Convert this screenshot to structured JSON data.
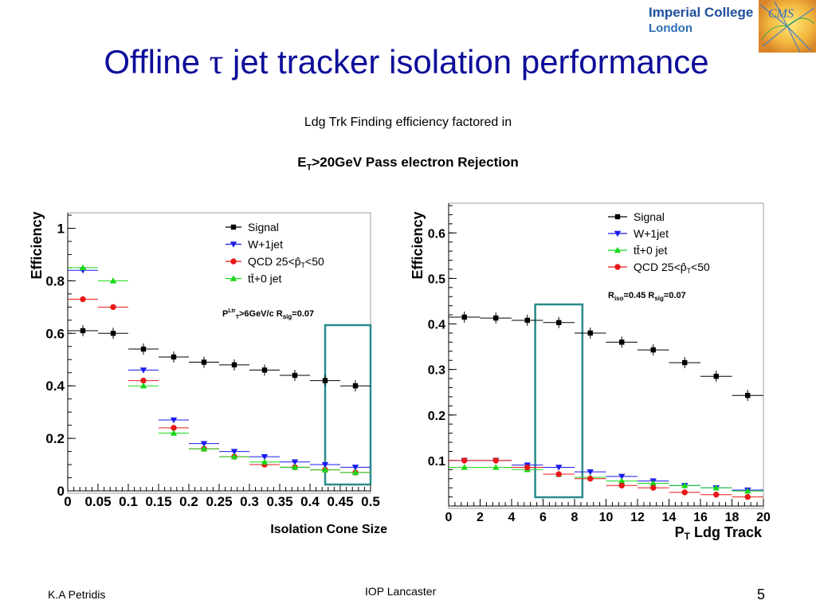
{
  "slide": {
    "title_pre": "Offline ",
    "title_tau": "τ",
    "title_post": " jet tracker isolation performance",
    "subtitle_line1": "Ldg Trk Finding efficiency factored in",
    "subtitle_line2_main": "E",
    "subtitle_line2_sub": "T",
    "subtitle_line2_rest": ">20GeV Pass electron Rejection"
  },
  "logo": {
    "line1": "Imperial College",
    "line2": "London",
    "cms_text": "CMS"
  },
  "footer": {
    "left": "K.A Petridis",
    "center": "IOP Lancaster",
    "page": "5"
  },
  "colors": {
    "title": "#0d0d9a",
    "signal": "#000000",
    "wjet": "#1a1aee",
    "qcd": "#e81818",
    "ttbar": "#18d818",
    "highlight": "#2a8a8a"
  },
  "chart_data": [
    {
      "type": "scatter",
      "ylabel": "Efficiency",
      "xlabel": "Isolation Cone Size",
      "xlim": [
        0,
        0.5
      ],
      "ylim": [
        0,
        1.05
      ],
      "x_ticks": [
        "0",
        "0.05",
        "0.1",
        "0.15",
        "0.2",
        "0.25",
        "0.3",
        "0.35",
        "0.4",
        "0.45",
        "0.5"
      ],
      "y_ticks": [
        "0",
        "0.2",
        "0.4",
        "0.6",
        "0.8",
        "1"
      ],
      "legend_position": "top-right",
      "annotation": {
        "pre": "P",
        "sup": "Ltr",
        "sub": "T",
        "mid": ">6GeV/c R",
        "sub2": "sig",
        "post": "=0.07"
      },
      "highlight_range": [
        0.425,
        0.5
      ],
      "x": [
        0.025,
        0.075,
        0.125,
        0.175,
        0.225,
        0.275,
        0.325,
        0.375,
        0.425,
        0.475
      ],
      "series": [
        {
          "name": "Signal",
          "marker": "square",
          "color": "#000000",
          "values": [
            0.61,
            0.6,
            0.54,
            0.51,
            0.49,
            0.48,
            0.46,
            0.44,
            0.42,
            0.4
          ]
        },
        {
          "name": "W+1jet",
          "marker": "triangle-down",
          "color": "#1a1aee",
          "values": [
            0.84,
            null,
            0.46,
            0.27,
            0.18,
            0.15,
            0.13,
            0.11,
            0.1,
            0.09
          ]
        },
        {
          "name": "QCD 25<p̂",
          "name_sub": "T",
          "name_post": "<50",
          "marker": "circle",
          "color": "#e81818",
          "values": [
            0.73,
            0.7,
            0.42,
            0.24,
            0.16,
            0.13,
            0.1,
            0.09,
            0.08,
            0.07
          ]
        },
        {
          "name": "tt̄+0 jet",
          "marker": "triangle-up",
          "color": "#18d818",
          "values": [
            0.85,
            0.8,
            0.4,
            0.22,
            0.16,
            0.13,
            0.11,
            0.09,
            0.08,
            0.07
          ]
        }
      ]
    },
    {
      "type": "scatter",
      "ylabel": "Efficiency",
      "xlabel_main": "P",
      "xlabel_sub": "T",
      "xlabel_rest": " Ldg Track",
      "xlim": [
        0,
        20
      ],
      "ylim": [
        0,
        0.66
      ],
      "x_ticks": [
        "0",
        "2",
        "4",
        "6",
        "8",
        "10",
        "12",
        "14",
        "16",
        "18",
        "20"
      ],
      "y_ticks": [
        "0.1",
        "0.2",
        "0.3",
        "0.4",
        "0.5",
        "0.6"
      ],
      "legend_position": "top-right",
      "annotation": {
        "pre": "R",
        "sub": "iso",
        "mid": "=0.45 R",
        "sub2": "sig",
        "post": "=0.07"
      },
      "highlight_range": [
        5.5,
        8.5
      ],
      "x": [
        1,
        3,
        5,
        7,
        9,
        11,
        13,
        15,
        17,
        19
      ],
      "series": [
        {
          "name": "Signal",
          "marker": "square",
          "color": "#000000",
          "values": [
            0.415,
            0.413,
            0.408,
            0.403,
            0.38,
            0.36,
            0.343,
            0.315,
            0.285,
            0.243
          ]
        },
        {
          "name": "W+1jet",
          "marker": "triangle-down",
          "color": "#1a1aee",
          "values": [
            0.1,
            0.1,
            0.09,
            0.085,
            0.075,
            0.065,
            0.055,
            0.045,
            0.04,
            0.035
          ]
        },
        {
          "name": "tt̄+0 jet",
          "marker": "triangle-up",
          "color": "#18d818",
          "values": [
            0.085,
            0.085,
            0.08,
            0.07,
            0.063,
            0.055,
            0.05,
            0.045,
            0.04,
            0.033
          ]
        },
        {
          "name": "QCD 25<p̂",
          "name_sub": "T",
          "name_post": "<50",
          "marker": "circle",
          "color": "#e81818",
          "values": [
            0.1,
            0.1,
            0.085,
            0.07,
            0.06,
            0.045,
            0.04,
            0.03,
            0.025,
            0.02
          ]
        }
      ]
    }
  ]
}
